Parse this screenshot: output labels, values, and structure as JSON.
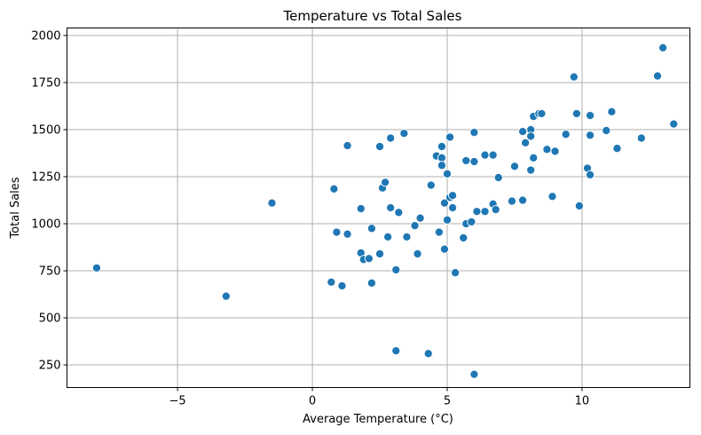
{
  "chart_data": {
    "type": "scatter",
    "title": "Temperature vs Total Sales",
    "xlabel": "Average Temperature (°C)",
    "ylabel": "Total Sales",
    "xlim": [
      -9.1,
      14.0
    ],
    "ylim": [
      130,
      2040
    ],
    "xticks": [
      -5,
      0,
      5,
      10
    ],
    "yticks": [
      250,
      500,
      750,
      1000,
      1250,
      1500,
      1750,
      2000
    ],
    "xtick_labels": [
      "−5",
      "0",
      "5",
      "10"
    ],
    "ytick_labels": [
      "250",
      "500",
      "750",
      "1000",
      "1250",
      "1500",
      "1750",
      "2000"
    ],
    "grid": true,
    "color": "#1f77b4",
    "points": [
      [
        -8.0,
        765
      ],
      [
        -3.2,
        615
      ],
      [
        -1.5,
        1110
      ],
      [
        0.7,
        690
      ],
      [
        0.8,
        1185
      ],
      [
        0.9,
        955
      ],
      [
        1.1,
        670
      ],
      [
        1.3,
        945
      ],
      [
        1.3,
        1415
      ],
      [
        1.8,
        1080
      ],
      [
        1.8,
        845
      ],
      [
        1.9,
        810
      ],
      [
        2.1,
        815
      ],
      [
        2.2,
        685
      ],
      [
        2.2,
        975
      ],
      [
        2.5,
        1410
      ],
      [
        2.5,
        840
      ],
      [
        2.6,
        1190
      ],
      [
        2.7,
        1220
      ],
      [
        2.8,
        930
      ],
      [
        2.9,
        1455
      ],
      [
        2.9,
        1085
      ],
      [
        3.1,
        755
      ],
      [
        3.1,
        325
      ],
      [
        3.2,
        1060
      ],
      [
        3.4,
        1480
      ],
      [
        3.5,
        930
      ],
      [
        3.8,
        990
      ],
      [
        3.9,
        840
      ],
      [
        4.0,
        1030
      ],
      [
        4.3,
        310
      ],
      [
        4.4,
        1205
      ],
      [
        4.6,
        1360
      ],
      [
        4.7,
        955
      ],
      [
        4.8,
        1410
      ],
      [
        4.8,
        1350
      ],
      [
        4.8,
        1310
      ],
      [
        4.9,
        1110
      ],
      [
        4.9,
        865
      ],
      [
        5.0,
        1265
      ],
      [
        5.0,
        1020
      ],
      [
        5.1,
        1460
      ],
      [
        5.1,
        1140
      ],
      [
        5.2,
        1150
      ],
      [
        5.2,
        1085
      ],
      [
        5.3,
        740
      ],
      [
        5.6,
        925
      ],
      [
        5.7,
        1335
      ],
      [
        5.7,
        1000
      ],
      [
        5.9,
        1010
      ],
      [
        6.0,
        1485
      ],
      [
        6.0,
        1330
      ],
      [
        6.0,
        200
      ],
      [
        6.1,
        1065
      ],
      [
        6.4,
        1365
      ],
      [
        6.4,
        1065
      ],
      [
        6.7,
        1365
      ],
      [
        6.7,
        1105
      ],
      [
        6.8,
        1075
      ],
      [
        6.9,
        1245
      ],
      [
        7.4,
        1120
      ],
      [
        7.5,
        1305
      ],
      [
        7.8,
        1490
      ],
      [
        7.8,
        1125
      ],
      [
        7.9,
        1430
      ],
      [
        8.1,
        1500
      ],
      [
        8.1,
        1465
      ],
      [
        8.1,
        1285
      ],
      [
        8.2,
        1570
      ],
      [
        8.2,
        1350
      ],
      [
        8.4,
        1585
      ],
      [
        8.5,
        1585
      ],
      [
        8.7,
        1395
      ],
      [
        8.9,
        1145
      ],
      [
        9.0,
        1385
      ],
      [
        9.4,
        1475
      ],
      [
        9.7,
        1780
      ],
      [
        9.8,
        1585
      ],
      [
        9.9,
        1095
      ],
      [
        10.2,
        1295
      ],
      [
        10.3,
        1575
      ],
      [
        10.3,
        1470
      ],
      [
        10.3,
        1260
      ],
      [
        10.9,
        1495
      ],
      [
        11.1,
        1595
      ],
      [
        11.3,
        1400
      ],
      [
        12.2,
        1455
      ],
      [
        12.8,
        1785
      ],
      [
        13.0,
        1935
      ],
      [
        13.4,
        1530
      ]
    ]
  }
}
